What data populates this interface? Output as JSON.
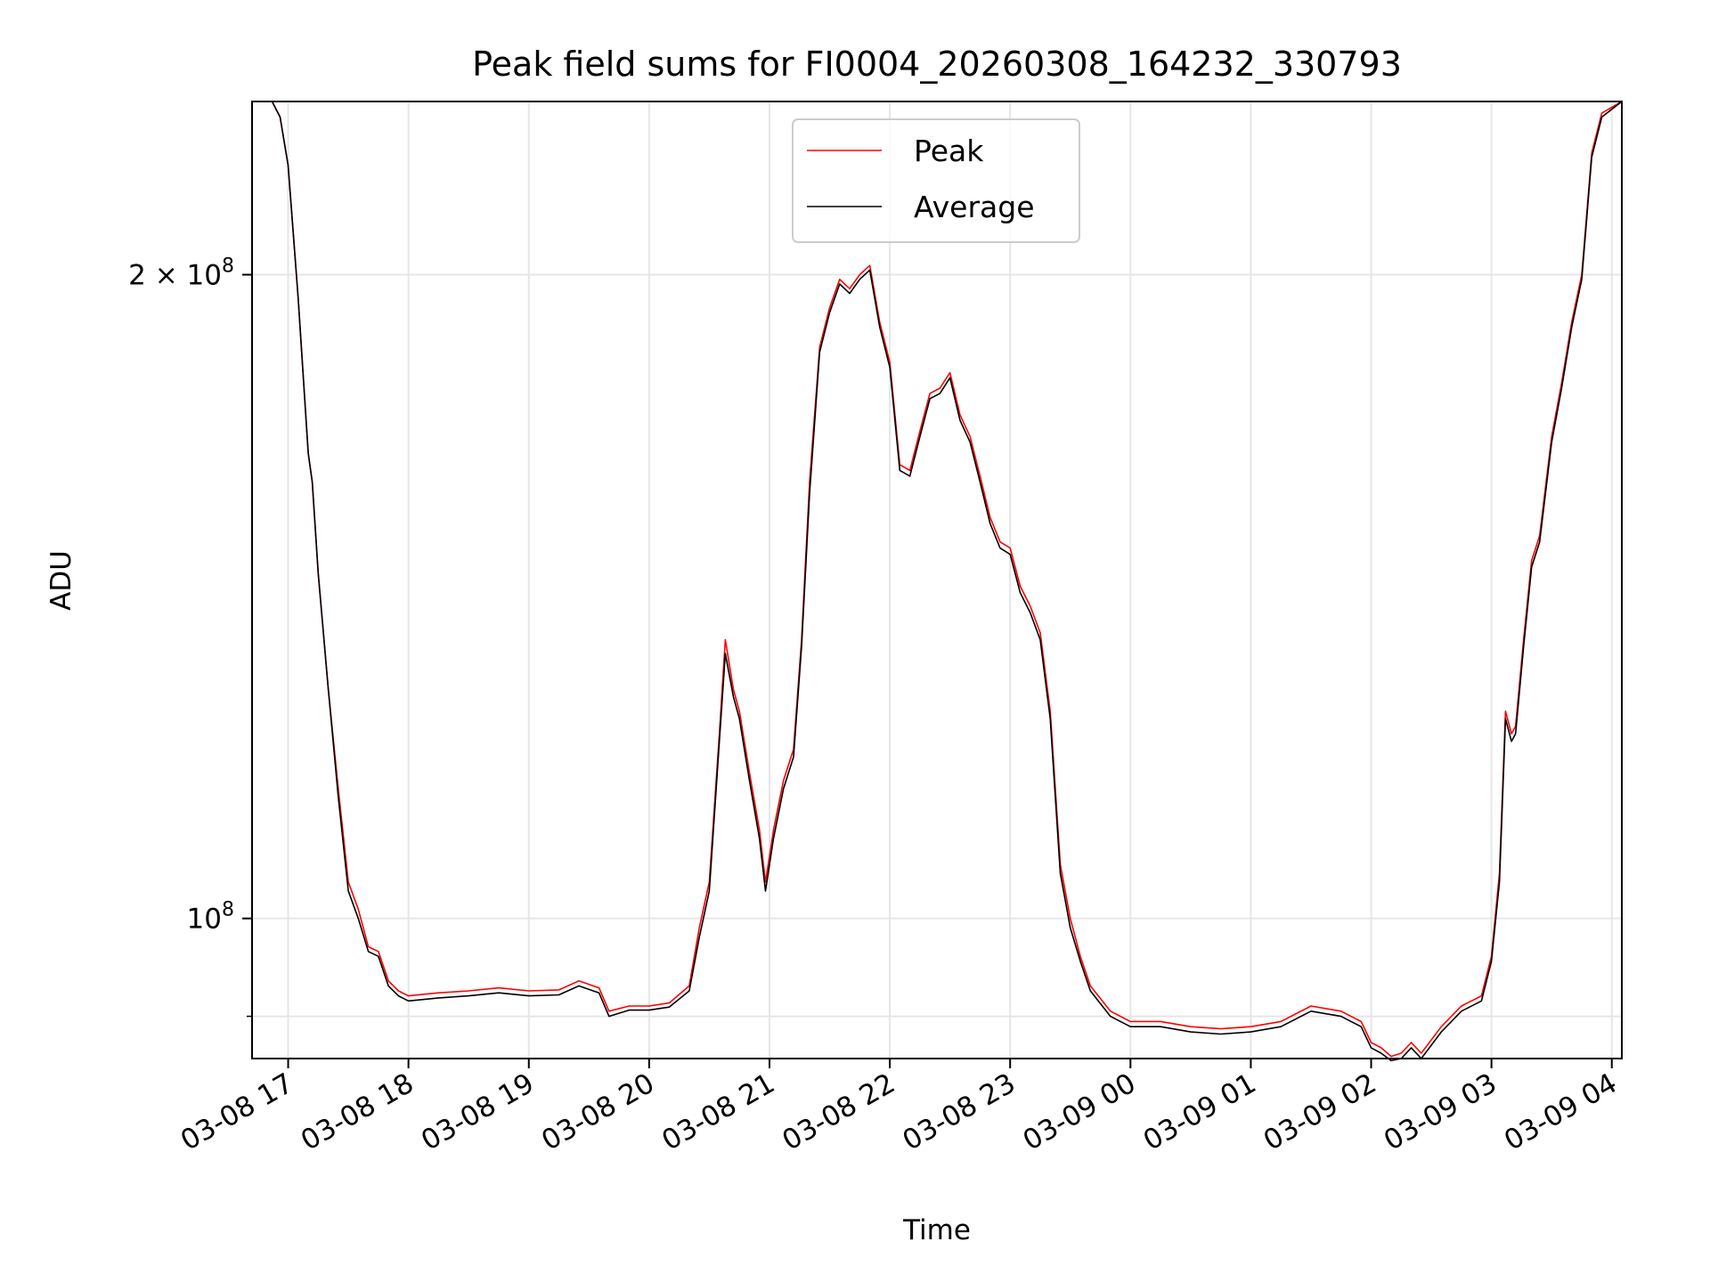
{
  "chart_data": {
    "type": "line",
    "title": "Peak field sums for FI0004_20260308_164232_330793",
    "xlabel": "Time",
    "ylabel": "ADU",
    "y_scale": "log",
    "xlim": [
      "2026-03-08 16:42",
      "2026-03-09 04:05"
    ],
    "ylim": [
      86000000,
      241000000
    ],
    "grid": true,
    "legend": "upper center",
    "x_ticks": [
      {
        "t": "2026-03-08 17:00",
        "label": "03-08 17"
      },
      {
        "t": "2026-03-08 18:00",
        "label": "03-08 18"
      },
      {
        "t": "2026-03-08 19:00",
        "label": "03-08 19"
      },
      {
        "t": "2026-03-08 20:00",
        "label": "03-08 20"
      },
      {
        "t": "2026-03-08 21:00",
        "label": "03-08 21"
      },
      {
        "t": "2026-03-08 22:00",
        "label": "03-08 22"
      },
      {
        "t": "2026-03-08 23:00",
        "label": "03-08 23"
      },
      {
        "t": "2026-03-09 00:00",
        "label": "03-09 00"
      },
      {
        "t": "2026-03-09 01:00",
        "label": "03-09 01"
      },
      {
        "t": "2026-03-09 02:00",
        "label": "03-09 02"
      },
      {
        "t": "2026-03-09 03:00",
        "label": "03-09 03"
      },
      {
        "t": "2026-03-09 04:00",
        "label": "03-09 04"
      }
    ],
    "y_ticks": [
      {
        "value": 100000000,
        "label": "10",
        "exp": "8"
      },
      {
        "value": 200000000,
        "label": "2 × 10",
        "exp": "8"
      }
    ],
    "y_minor_ticks": [
      90000000
    ],
    "series": [
      {
        "name": "Peak",
        "color": "#ff0000",
        "points": [
          [
            "2026-03-08 16:42",
            241000000
          ],
          [
            "2026-03-08 16:52",
            241000000
          ],
          [
            "2026-03-08 16:56",
            237000000
          ],
          [
            "2026-03-08 17:00",
            225000000
          ],
          [
            "2026-03-08 17:05",
            195000000
          ],
          [
            "2026-03-08 17:10",
            165000000
          ],
          [
            "2026-03-08 17:12",
            160000000
          ],
          [
            "2026-03-08 17:15",
            145000000
          ],
          [
            "2026-03-08 17:20",
            128000000
          ],
          [
            "2026-03-08 17:25",
            115000000
          ],
          [
            "2026-03-08 17:30",
            104000000
          ],
          [
            "2026-03-08 17:35",
            101000000
          ],
          [
            "2026-03-08 17:40",
            97000000
          ],
          [
            "2026-03-08 17:45",
            96500000
          ],
          [
            "2026-03-08 17:50",
            93500000
          ],
          [
            "2026-03-08 17:55",
            92500000
          ],
          [
            "2026-03-08 18:00",
            92000000
          ],
          [
            "2026-03-08 18:15",
            92300000
          ],
          [
            "2026-03-08 18:30",
            92500000
          ],
          [
            "2026-03-08 18:45",
            92800000
          ],
          [
            "2026-03-08 19:00",
            92500000
          ],
          [
            "2026-03-08 19:15",
            92600000
          ],
          [
            "2026-03-08 19:25",
            93500000
          ],
          [
            "2026-03-08 19:35",
            92800000
          ],
          [
            "2026-03-08 19:40",
            90500000
          ],
          [
            "2026-03-08 19:50",
            91000000
          ],
          [
            "2026-03-08 20:00",
            91000000
          ],
          [
            "2026-03-08 20:10",
            91300000
          ],
          [
            "2026-03-08 20:20",
            93000000
          ],
          [
            "2026-03-08 20:25",
            99000000
          ],
          [
            "2026-03-08 20:30",
            104000000
          ],
          [
            "2026-03-08 20:35",
            122000000
          ],
          [
            "2026-03-08 20:38",
            135000000
          ],
          [
            "2026-03-08 20:42",
            128000000
          ],
          [
            "2026-03-08 20:45",
            125000000
          ],
          [
            "2026-03-08 20:50",
            117000000
          ],
          [
            "2026-03-08 20:55",
            110000000
          ],
          [
            "2026-03-08 20:58",
            104000000
          ],
          [
            "2026-03-08 21:02",
            110000000
          ],
          [
            "2026-03-08 21:07",
            116000000
          ],
          [
            "2026-03-08 21:12",
            120000000
          ],
          [
            "2026-03-08 21:16",
            135000000
          ],
          [
            "2026-03-08 21:20",
            160000000
          ],
          [
            "2026-03-08 21:25",
            185000000
          ],
          [
            "2026-03-08 21:30",
            193000000
          ],
          [
            "2026-03-08 21:35",
            199000000
          ],
          [
            "2026-03-08 21:40",
            197000000
          ],
          [
            "2026-03-08 21:45",
            200000000
          ],
          [
            "2026-03-08 21:50",
            202000000
          ],
          [
            "2026-03-08 21:55",
            190000000
          ],
          [
            "2026-03-08 22:00",
            182000000
          ],
          [
            "2026-03-08 22:05",
            163000000
          ],
          [
            "2026-03-08 22:10",
            162000000
          ],
          [
            "2026-03-08 22:15",
            169000000
          ],
          [
            "2026-03-08 22:20",
            176000000
          ],
          [
            "2026-03-08 22:25",
            177000000
          ],
          [
            "2026-03-08 22:30",
            180000000
          ],
          [
            "2026-03-08 22:35",
            172000000
          ],
          [
            "2026-03-08 22:40",
            168000000
          ],
          [
            "2026-03-08 22:45",
            161000000
          ],
          [
            "2026-03-08 22:50",
            154000000
          ],
          [
            "2026-03-08 22:55",
            150000000
          ],
          [
            "2026-03-08 23:00",
            149000000
          ],
          [
            "2026-03-08 23:05",
            143000000
          ],
          [
            "2026-03-08 23:10",
            140000000
          ],
          [
            "2026-03-08 23:15",
            136000000
          ],
          [
            "2026-03-08 23:20",
            125000000
          ],
          [
            "2026-03-08 23:25",
            106000000
          ],
          [
            "2026-03-08 23:30",
            100000000
          ],
          [
            "2026-03-08 23:35",
            96000000
          ],
          [
            "2026-03-08 23:40",
            93000000
          ],
          [
            "2026-03-08 23:50",
            90500000
          ],
          [
            "2026-03-09 00:00",
            89500000
          ],
          [
            "2026-03-09 00:15",
            89500000
          ],
          [
            "2026-03-09 00:30",
            89000000
          ],
          [
            "2026-03-09 00:45",
            88800000
          ],
          [
            "2026-03-09 01:00",
            89000000
          ],
          [
            "2026-03-09 01:15",
            89500000
          ],
          [
            "2026-03-09 01:30",
            91000000
          ],
          [
            "2026-03-09 01:45",
            90500000
          ],
          [
            "2026-03-09 01:55",
            89500000
          ],
          [
            "2026-03-09 02:00",
            87500000
          ],
          [
            "2026-03-09 02:05",
            87000000
          ],
          [
            "2026-03-09 02:10",
            86200000
          ],
          [
            "2026-03-09 02:15",
            86500000
          ],
          [
            "2026-03-09 02:20",
            87500000
          ],
          [
            "2026-03-09 02:25",
            86500000
          ],
          [
            "2026-03-09 02:35",
            89000000
          ],
          [
            "2026-03-09 02:45",
            91000000
          ],
          [
            "2026-03-09 02:55",
            92000000
          ],
          [
            "2026-03-09 03:00",
            96000000
          ],
          [
            "2026-03-09 03:04",
            105000000
          ],
          [
            "2026-03-09 03:07",
            125000000
          ],
          [
            "2026-03-09 03:10",
            122000000
          ],
          [
            "2026-03-09 03:12",
            123000000
          ],
          [
            "2026-03-09 03:16",
            135000000
          ],
          [
            "2026-03-09 03:20",
            147000000
          ],
          [
            "2026-03-09 03:24",
            151000000
          ],
          [
            "2026-03-09 03:30",
            168000000
          ],
          [
            "2026-03-09 03:35",
            178000000
          ],
          [
            "2026-03-09 03:40",
            190000000
          ],
          [
            "2026-03-09 03:45",
            200000000
          ],
          [
            "2026-03-09 03:50",
            228000000
          ],
          [
            "2026-03-09 03:55",
            238000000
          ],
          [
            "2026-03-09 04:05",
            241000000
          ]
        ]
      },
      {
        "name": "Average",
        "color": "#000000",
        "points": [
          [
            "2026-03-08 16:42",
            241000000
          ],
          [
            "2026-03-08 16:52",
            241000000
          ],
          [
            "2026-03-08 16:56",
            237000000
          ],
          [
            "2026-03-08 17:00",
            225000000
          ],
          [
            "2026-03-08 17:05",
            195000000
          ],
          [
            "2026-03-08 17:10",
            165000000
          ],
          [
            "2026-03-08 17:12",
            160000000
          ],
          [
            "2026-03-08 17:15",
            145000000
          ],
          [
            "2026-03-08 17:20",
            128000000
          ],
          [
            "2026-03-08 17:25",
            114000000
          ],
          [
            "2026-03-08 17:30",
            103000000
          ],
          [
            "2026-03-08 17:35",
            100000000
          ],
          [
            "2026-03-08 17:40",
            96500000
          ],
          [
            "2026-03-08 17:45",
            96000000
          ],
          [
            "2026-03-08 17:50",
            93000000
          ],
          [
            "2026-03-08 17:55",
            92000000
          ],
          [
            "2026-03-08 18:00",
            91500000
          ],
          [
            "2026-03-08 18:15",
            91800000
          ],
          [
            "2026-03-08 18:30",
            92000000
          ],
          [
            "2026-03-08 18:45",
            92300000
          ],
          [
            "2026-03-08 19:00",
            92000000
          ],
          [
            "2026-03-08 19:15",
            92100000
          ],
          [
            "2026-03-08 19:25",
            93000000
          ],
          [
            "2026-03-08 19:35",
            92300000
          ],
          [
            "2026-03-08 19:40",
            90000000
          ],
          [
            "2026-03-08 19:50",
            90600000
          ],
          [
            "2026-03-08 20:00",
            90600000
          ],
          [
            "2026-03-08 20:10",
            90900000
          ],
          [
            "2026-03-08 20:20",
            92500000
          ],
          [
            "2026-03-08 20:25",
            98000000
          ],
          [
            "2026-03-08 20:30",
            103000000
          ],
          [
            "2026-03-08 20:35",
            121000000
          ],
          [
            "2026-03-08 20:38",
            133000000
          ],
          [
            "2026-03-08 20:42",
            127000000
          ],
          [
            "2026-03-08 20:45",
            124000000
          ],
          [
            "2026-03-08 20:50",
            116000000
          ],
          [
            "2026-03-08 20:55",
            109000000
          ],
          [
            "2026-03-08 20:58",
            103000000
          ],
          [
            "2026-03-08 21:02",
            109000000
          ],
          [
            "2026-03-08 21:07",
            115000000
          ],
          [
            "2026-03-08 21:12",
            119000000
          ],
          [
            "2026-03-08 21:16",
            134000000
          ],
          [
            "2026-03-08 21:20",
            158000000
          ],
          [
            "2026-03-08 21:25",
            184000000
          ],
          [
            "2026-03-08 21:30",
            192000000
          ],
          [
            "2026-03-08 21:35",
            198000000
          ],
          [
            "2026-03-08 21:40",
            196000000
          ],
          [
            "2026-03-08 21:45",
            199000000
          ],
          [
            "2026-03-08 21:50",
            201000000
          ],
          [
            "2026-03-08 21:55",
            189000000
          ],
          [
            "2026-03-08 22:00",
            181000000
          ],
          [
            "2026-03-08 22:05",
            162000000
          ],
          [
            "2026-03-08 22:10",
            161000000
          ],
          [
            "2026-03-08 22:15",
            168000000
          ],
          [
            "2026-03-08 22:20",
            175000000
          ],
          [
            "2026-03-08 22:25",
            176000000
          ],
          [
            "2026-03-08 22:30",
            179000000
          ],
          [
            "2026-03-08 22:35",
            171000000
          ],
          [
            "2026-03-08 22:40",
            167000000
          ],
          [
            "2026-03-08 22:45",
            160000000
          ],
          [
            "2026-03-08 22:50",
            153000000
          ],
          [
            "2026-03-08 22:55",
            149000000
          ],
          [
            "2026-03-08 23:00",
            148000000
          ],
          [
            "2026-03-08 23:05",
            142000000
          ],
          [
            "2026-03-08 23:10",
            139000000
          ],
          [
            "2026-03-08 23:15",
            135000000
          ],
          [
            "2026-03-08 23:20",
            124000000
          ],
          [
            "2026-03-08 23:25",
            105000000
          ],
          [
            "2026-03-08 23:30",
            99000000
          ],
          [
            "2026-03-08 23:35",
            95500000
          ],
          [
            "2026-03-08 23:40",
            92500000
          ],
          [
            "2026-03-08 23:50",
            90000000
          ],
          [
            "2026-03-09 00:00",
            89000000
          ],
          [
            "2026-03-09 00:15",
            89000000
          ],
          [
            "2026-03-09 00:30",
            88500000
          ],
          [
            "2026-03-09 00:45",
            88300000
          ],
          [
            "2026-03-09 01:00",
            88500000
          ],
          [
            "2026-03-09 01:15",
            89000000
          ],
          [
            "2026-03-09 01:30",
            90500000
          ],
          [
            "2026-03-09 01:45",
            90000000
          ],
          [
            "2026-03-09 01:55",
            89000000
          ],
          [
            "2026-03-09 02:00",
            87000000
          ],
          [
            "2026-03-09 02:05",
            86500000
          ],
          [
            "2026-03-09 02:10",
            85800000
          ],
          [
            "2026-03-09 02:15",
            86000000
          ],
          [
            "2026-03-09 02:20",
            87000000
          ],
          [
            "2026-03-09 02:25",
            86000000
          ],
          [
            "2026-03-09 02:35",
            88500000
          ],
          [
            "2026-03-09 02:45",
            90500000
          ],
          [
            "2026-03-09 02:55",
            91500000
          ],
          [
            "2026-03-09 03:00",
            95500000
          ],
          [
            "2026-03-09 03:04",
            104000000
          ],
          [
            "2026-03-09 03:07",
            124000000
          ],
          [
            "2026-03-09 03:10",
            121000000
          ],
          [
            "2026-03-09 03:12",
            122000000
          ],
          [
            "2026-03-09 03:16",
            134000000
          ],
          [
            "2026-03-09 03:20",
            146000000
          ],
          [
            "2026-03-09 03:24",
            150000000
          ],
          [
            "2026-03-09 03:30",
            167000000
          ],
          [
            "2026-03-09 03:35",
            177000000
          ],
          [
            "2026-03-09 03:40",
            189000000
          ],
          [
            "2026-03-09 03:45",
            199000000
          ],
          [
            "2026-03-09 03:50",
            227000000
          ],
          [
            "2026-03-09 03:55",
            237000000
          ],
          [
            "2026-03-09 04:05",
            241000000
          ]
        ]
      }
    ]
  }
}
